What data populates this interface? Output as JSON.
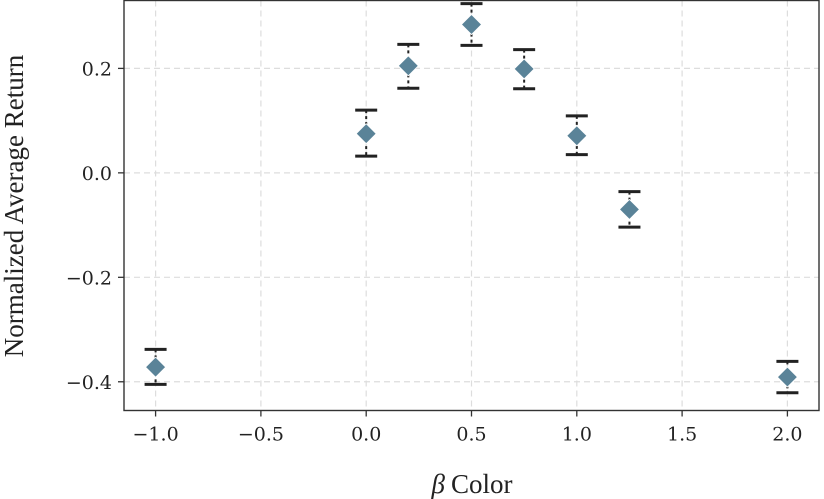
{
  "chart_data": {
    "type": "scatter",
    "title": "",
    "xlabel_symbol": "β",
    "xlabel_text": "Color",
    "ylabel": "Normalized Average Return",
    "xlim": [
      -1.15,
      2.15
    ],
    "ylim": [
      -0.455,
      0.33
    ],
    "x_ticks": [
      -1.0,
      -0.5,
      0.0,
      0.5,
      1.0,
      1.5,
      2.0
    ],
    "x_tick_labels": [
      "−1.0",
      "−0.5",
      "0.0",
      "0.5",
      "1.0",
      "1.5",
      "2.0"
    ],
    "y_ticks": [
      -0.4,
      -0.2,
      0.0,
      0.2
    ],
    "y_tick_labels": [
      "−0.4",
      "−0.2",
      "0.0",
      "0.2"
    ],
    "grid": true,
    "marker": "diamond",
    "marker_color": "#5a8398",
    "errorbar_color": "#222222",
    "points": [
      {
        "x": -1.0,
        "y": -0.372,
        "lo": -0.405,
        "hi": -0.338
      },
      {
        "x": 0.0,
        "y": 0.075,
        "lo": 0.032,
        "hi": 0.12
      },
      {
        "x": 0.2,
        "y": 0.205,
        "lo": 0.162,
        "hi": 0.246
      },
      {
        "x": 0.5,
        "y": 0.284,
        "lo": 0.244,
        "hi": 0.324
      },
      {
        "x": 0.75,
        "y": 0.199,
        "lo": 0.161,
        "hi": 0.236
      },
      {
        "x": 1.0,
        "y": 0.071,
        "lo": 0.035,
        "hi": 0.109
      },
      {
        "x": 1.25,
        "y": -0.07,
        "lo": -0.104,
        "hi": -0.036
      },
      {
        "x": 2.0,
        "y": -0.391,
        "lo": -0.421,
        "hi": -0.361
      }
    ]
  }
}
